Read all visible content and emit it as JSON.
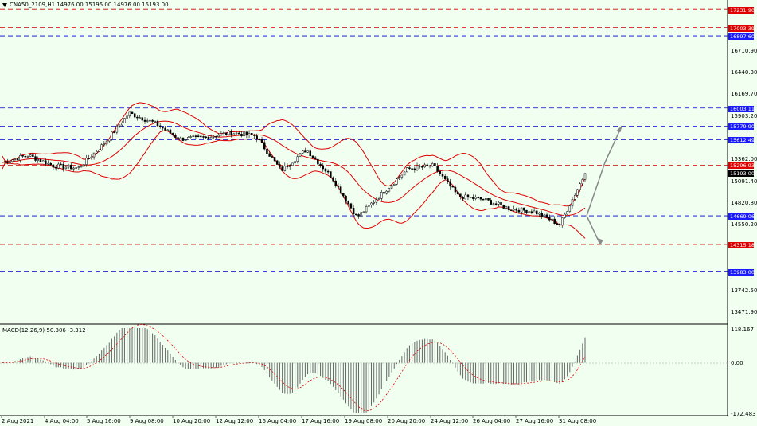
{
  "header": {
    "symbol_line": "CNA50_2109,H1  14976.00 15195.00 14976.00 15193.00"
  },
  "macd_header": {
    "text": "MACD(12,26,9) 50.306 -3.312"
  },
  "colors": {
    "background": "#f0fff0",
    "bands": "#e00000",
    "support_line": "#0000cc",
    "resistance_line": "#cc0000",
    "arrow": "#888888",
    "tag_blue": "#1a1aff",
    "tag_red": "#e00000",
    "tag_black": "#000000"
  },
  "y_axis": {
    "labels": [
      "16710.90",
      "16440.30",
      "16169.70",
      "15903.20",
      "15362.00",
      "15091.40",
      "14820.80",
      "14550.20",
      "13742.50",
      "13471.90"
    ]
  },
  "price_tags": {
    "t17231": "17231.90",
    "t17003": "17003.39",
    "t16897": "16897.60",
    "t16003": "16003.11",
    "t15779": "15779.90",
    "t15612": "15612.49",
    "t15296": "15296.93",
    "t15193": "15193.00",
    "t14669": "14669.06",
    "t14315": "14315.18",
    "t13983": "13983.00"
  },
  "macd_axis": {
    "top": "118.167",
    "zero": "0.00",
    "bottom": "-172.483"
  },
  "x_axis": {
    "labels": [
      "2 Aug 2021",
      "4 Aug 04:00",
      "5 Aug 16:00",
      "9 Aug 08:00",
      "10 Aug 20:00",
      "12 Aug 12:00",
      "16 Aug 04:00",
      "17 Aug 16:00",
      "19 Aug 08:00",
      "20 Aug 20:00",
      "24 Aug 12:00",
      "26 Aug 04:00",
      "27 Aug 16:00",
      "31 Aug 08:00"
    ]
  },
  "chart_data": {
    "type": "candlestick",
    "symbol": "CNA50_2109",
    "timeframe": "H1",
    "last": {
      "open": 14976.0,
      "high": 15195.0,
      "low": 14976.0,
      "close": 15193.0
    },
    "ylim": [
      13400,
      17300
    ],
    "close_path": [
      [
        "2 Aug 2021",
        15330
      ],
      [
        "3 Aug",
        15420
      ],
      [
        "4 Aug 04:00",
        15290
      ],
      [
        "5 Aug 16:00",
        15260
      ],
      [
        "6 Aug",
        15560
      ],
      [
        "9 Aug 08:00",
        15940
      ],
      [
        "10 Aug 20:00",
        15820
      ],
      [
        "11 Aug",
        15620
      ],
      [
        "12 Aug 12:00",
        15640
      ],
      [
        "13 Aug",
        15700
      ],
      [
        "16 Aug 04:00",
        15660
      ],
      [
        "17 Aug",
        15230
      ],
      [
        "17 Aug 16:00",
        15490
      ],
      [
        "18 Aug",
        15150
      ],
      [
        "19 Aug 08:00",
        14650
      ],
      [
        "20 Aug 20:00",
        14950
      ],
      [
        "23 Aug",
        15250
      ],
      [
        "24 Aug 12:00",
        15290
      ],
      [
        "25 Aug",
        14910
      ],
      [
        "26 Aug 04:00",
        14870
      ],
      [
        "27 Aug",
        14760
      ],
      [
        "27 Aug 16:00",
        14720
      ],
      [
        "30 Aug",
        14560
      ],
      [
        "31 Aug 08:00",
        15193
      ]
    ],
    "horizontal_levels": {
      "red_dashed": [
        17231.9,
        17003.39,
        15296.93,
        14315.18
      ],
      "blue_dashed": [
        16897.6,
        16003.11,
        15779.9,
        15612.49,
        14669.06,
        13983.0
      ]
    },
    "projection_arrows": [
      "up to 15779.90",
      "down to 14315.18"
    ],
    "indicators": [
      "Bollinger Bands",
      "MACD(12,26,9)"
    ],
    "macd": {
      "main": 50.306,
      "signal": -3.312,
      "ylim": [
        -172.483,
        118.167
      ]
    }
  }
}
